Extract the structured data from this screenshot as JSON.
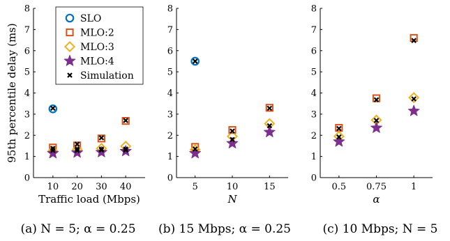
{
  "chart_data": [
    {
      "type": "scatter",
      "title": "",
      "caption": "(a) N = 5; α = 0.25",
      "xlabel": "Traffic load (Mbps)",
      "ylabel": "95th percentile delay (ms)",
      "x": [
        10,
        20,
        30,
        40
      ],
      "x_ticks": [
        "10",
        "20",
        "30",
        "40"
      ],
      "xlim": [
        2,
        48
      ],
      "ylim": [
        0,
        8
      ],
      "y_ticks": [
        "0",
        "1",
        "2",
        "3",
        "4",
        "5",
        "6",
        "7",
        "8"
      ],
      "series": [
        {
          "name": "SLO",
          "values": [
            3.25,
            null,
            null,
            null
          ]
        },
        {
          "name": "MLO:2",
          "values": [
            1.42,
            1.52,
            1.85,
            2.68
          ]
        },
        {
          "name": "MLO:3",
          "values": [
            1.25,
            1.32,
            1.38,
            1.48
          ]
        },
        {
          "name": "MLO:4",
          "values": [
            1.15,
            1.18,
            1.2,
            1.25
          ]
        },
        {
          "name": "Simulation",
          "values": [
            3.28,
            1.58,
            1.88,
            2.7,
            1.38,
            1.35,
            1.35,
            1.35,
            1.28,
            1.28,
            1.3,
            1.3
          ],
          "x": [
            10,
            20,
            30,
            40,
            10,
            20,
            30,
            40,
            10,
            20,
            30,
            40
          ]
        }
      ],
      "legend": {
        "position": "top-right",
        "entries": [
          "SLO",
          "MLO:2",
          "MLO:3",
          "MLO:4",
          "Simulation"
        ]
      },
      "grid": false
    },
    {
      "type": "scatter",
      "title": "",
      "caption": "(b) 15 Mbps; α = 0.25",
      "xlabel": "N",
      "ylabel": "",
      "x": [
        5,
        10,
        15
      ],
      "x_ticks": [
        "5",
        "10",
        "15"
      ],
      "xlim": [
        2.5,
        17.5
      ],
      "ylim": [
        0,
        8
      ],
      "y_ticks": [
        "0",
        "1",
        "2",
        "3",
        "4",
        "5",
        "6",
        "7",
        "8"
      ],
      "series": [
        {
          "name": "SLO",
          "values": [
            5.5,
            null,
            null
          ]
        },
        {
          "name": "MLO:2",
          "values": [
            1.45,
            2.25,
            3.3
          ]
        },
        {
          "name": "MLO:3",
          "values": [
            1.32,
            1.95,
            2.55
          ]
        },
        {
          "name": "MLO:4",
          "values": [
            1.15,
            1.62,
            2.15
          ]
        },
        {
          "name": "Simulation",
          "values": [
            5.5,
            2.2,
            3.28,
            1.35,
            1.8,
            2.45
          ],
          "x": [
            5,
            10,
            15,
            5,
            10,
            15
          ]
        }
      ],
      "grid": false
    },
    {
      "type": "scatter",
      "title": "",
      "caption": "(c) 10 Mbps; N = 5",
      "xlabel": "α",
      "ylabel": "",
      "x": [
        0.5,
        0.75,
        1
      ],
      "x_ticks": [
        "0.5",
        "0.75",
        "1"
      ],
      "xlim": [
        0.375,
        1.125
      ],
      "ylim": [
        0,
        8
      ],
      "y_ticks": [
        "0",
        "1",
        "2",
        "3",
        "4",
        "5",
        "6",
        "7",
        "8"
      ],
      "series": [
        {
          "name": "MLO:2",
          "values": [
            2.35,
            3.75,
            6.6
          ]
        },
        {
          "name": "MLO:3",
          "values": [
            1.95,
            2.72,
            3.78
          ]
        },
        {
          "name": "MLO:4",
          "values": [
            1.7,
            2.35,
            3.15
          ]
        },
        {
          "name": "Simulation",
          "values": [
            2.32,
            3.68,
            6.48,
            1.92,
            2.7,
            3.72
          ],
          "x": [
            0.5,
            0.75,
            1,
            0.5,
            0.75,
            1
          ]
        }
      ],
      "grid": false
    }
  ],
  "colors": {
    "SLO": "#0072BD",
    "MLO:2": "#D95319",
    "MLO:3": "#EDB120",
    "MLO:4": "#7E2F8E",
    "Simulation": "#000000"
  }
}
